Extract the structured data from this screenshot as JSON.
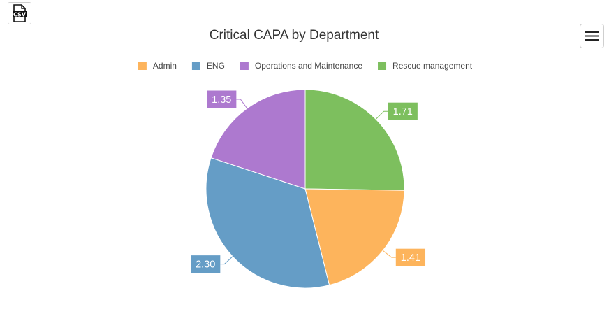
{
  "toolbar": {
    "csv_icon": "csv-file-icon",
    "csv_text": "CSV",
    "menu_icon": "hamburger-menu-icon"
  },
  "colors": {
    "admin": "#fdb45c",
    "eng": "#659dc6",
    "ops": "#ad79cf",
    "rescue": "#7dbf5e"
  },
  "chart_data": {
    "type": "pie",
    "title": "Critical CAPA by Department",
    "legend_position": "top-center",
    "start_angle_deg": 90,
    "direction": "clockwise",
    "slices": [
      {
        "label": "Rescue management",
        "value": 1.71,
        "display": "1.71",
        "color": "#7dbf5e"
      },
      {
        "label": "Admin",
        "value": 1.41,
        "display": "1.41",
        "color": "#fdb45c"
      },
      {
        "label": "ENG",
        "value": 2.3,
        "display": "2.30",
        "color": "#659dc6"
      },
      {
        "label": "Operations and Maintenance",
        "value": 1.35,
        "display": "1.35",
        "color": "#ad79cf"
      }
    ],
    "legend": [
      {
        "label": "Admin",
        "color": "#fdb45c"
      },
      {
        "label": "ENG",
        "color": "#659dc6"
      },
      {
        "label": "Operations and Maintenance",
        "color": "#ad79cf"
      },
      {
        "label": "Rescue management",
        "color": "#7dbf5e"
      }
    ]
  }
}
